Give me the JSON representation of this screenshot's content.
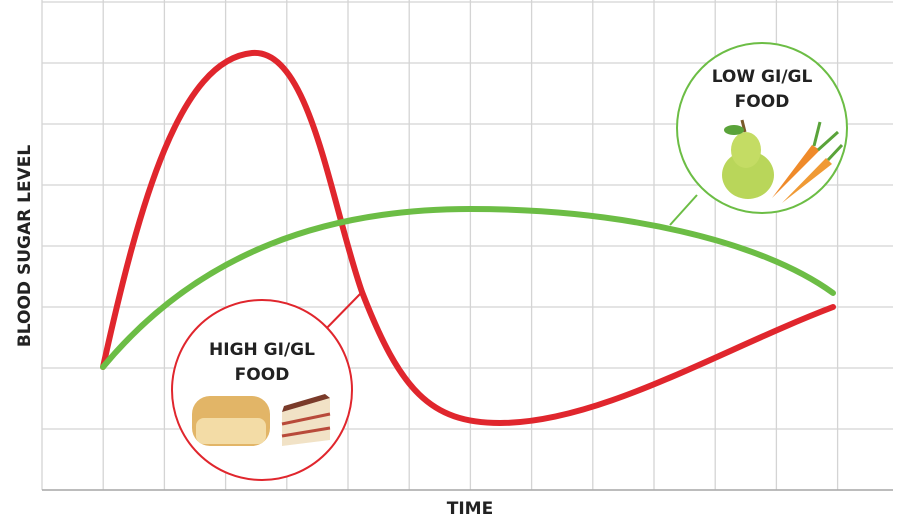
{
  "y_axis_label": "BLOOD SUGAR LEVEL",
  "x_axis_label": "TIME",
  "callouts": [
    {
      "lines": [
        "HIGH GI/GL",
        "FOOD"
      ]
    },
    {
      "lines": [
        "LOW GI/GL",
        "FOOD"
      ]
    }
  ]
}
